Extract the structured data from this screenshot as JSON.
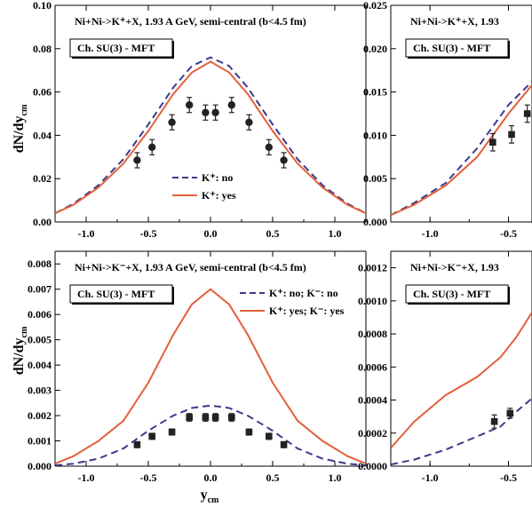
{
  "colors": {
    "no_line": "#3a3a8c",
    "yes_line": "#e2603a",
    "axis": "#000000",
    "marker": "#222222"
  },
  "x_axis_label": "y",
  "x_axis_label_sub": "cm",
  "y_axis_label": "dN/dy",
  "y_axis_label_sub": "cm",
  "chart_data": [
    {
      "type": "line",
      "panel": "top-left",
      "title": "Ni+Ni->K⁺+X, 1.93 A GeV,  semi-central (b<4.5 fm)",
      "box_label": "Ch. SU(3) - MFT",
      "xlim": [
        -1.25,
        1.25
      ],
      "ylim": [
        0,
        0.1
      ],
      "xticks": [
        -1.0,
        -0.5,
        0.0,
        0.5,
        1.0
      ],
      "xtick_labels": [
        "-1.0",
        "-0.5",
        "0.0",
        "0.5",
        "1.0"
      ],
      "yticks": [
        0,
        0.02,
        0.04,
        0.06,
        0.08,
        0.1
      ],
      "ytick_labels": [
        "0.00",
        "0.02",
        "0.04",
        "0.06",
        "0.08",
        "0.10"
      ],
      "legend_position": "lower-center",
      "series": [
        {
          "name": "K⁺: no",
          "style": "dashed",
          "x": [
            -1.25,
            -1.1,
            -0.9,
            -0.7,
            -0.5,
            -0.3,
            -0.15,
            0,
            0.15,
            0.3,
            0.5,
            0.7,
            0.9,
            1.1,
            1.25
          ],
          "y": [
            0.004,
            0.0085,
            0.017,
            0.029,
            0.045,
            0.062,
            0.072,
            0.076,
            0.072,
            0.062,
            0.045,
            0.029,
            0.017,
            0.0085,
            0.004
          ]
        },
        {
          "name": "K⁺: yes",
          "style": "solid",
          "x": [
            -1.25,
            -1.1,
            -0.9,
            -0.7,
            -0.5,
            -0.3,
            -0.15,
            0,
            0.15,
            0.3,
            0.5,
            0.7,
            0.9,
            1.1,
            1.25
          ],
          "y": [
            0.004,
            0.008,
            0.016,
            0.027,
            0.042,
            0.059,
            0.069,
            0.074,
            0.069,
            0.059,
            0.042,
            0.027,
            0.016,
            0.008,
            0.004
          ]
        }
      ],
      "points": {
        "marker": "circle",
        "x": [
          -0.59,
          -0.47,
          -0.31,
          -0.17,
          -0.04,
          0.04,
          0.17,
          0.31,
          0.47,
          0.59
        ],
        "y": [
          0.0285,
          0.0345,
          0.046,
          0.054,
          0.0505,
          0.0505,
          0.054,
          0.046,
          0.0345,
          0.0285
        ],
        "err": [
          0.0035,
          0.0035,
          0.0035,
          0.0035,
          0.0035,
          0.0035,
          0.0035,
          0.0035,
          0.0035,
          0.0035
        ]
      }
    },
    {
      "type": "line",
      "panel": "top-right",
      "title": "Ni+Ni->K⁺+X, 1.93",
      "box_label": "Ch. SU(3) - MFT",
      "xlim": [
        -1.25,
        -0.35
      ],
      "ylim": [
        0,
        0.025
      ],
      "xticks": [
        -1.0,
        -0.5
      ],
      "xtick_labels": [
        "-1.0",
        "-0.5"
      ],
      "yticks": [
        0,
        0.005,
        0.01,
        0.015,
        0.02,
        0.025
      ],
      "ytick_labels": [
        "0.000",
        "0.005",
        "0.010",
        "0.015",
        "0.020",
        "0.025"
      ],
      "series": [
        {
          "name": "K⁺: no",
          "style": "dashed",
          "x": [
            -1.25,
            -1.1,
            -0.9,
            -0.7,
            -0.5,
            -0.35
          ],
          "y": [
            0.0008,
            0.0022,
            0.0045,
            0.0085,
            0.0135,
            0.0162
          ]
        },
        {
          "name": "K⁺: yes",
          "style": "solid",
          "x": [
            -1.25,
            -1.1,
            -0.9,
            -0.7,
            -0.5,
            -0.35
          ],
          "y": [
            0.0008,
            0.002,
            0.0042,
            0.0075,
            0.0125,
            0.0158
          ]
        }
      ],
      "points": {
        "marker": "square",
        "x": [
          -0.6,
          -0.48,
          -0.38
        ],
        "y": [
          0.0092,
          0.0101,
          0.0125
        ],
        "err": [
          0.001,
          0.001,
          0.001
        ]
      }
    },
    {
      "type": "line",
      "panel": "bottom-left",
      "title": "Ni+Ni->K⁻+X, 1.93 A GeV,  semi-central (b<4.5 fm)",
      "box_label": "Ch. SU(3) - MFT",
      "xlim": [
        -1.25,
        1.25
      ],
      "ylim": [
        0,
        0.0085
      ],
      "xticks": [
        -1.0,
        -0.5,
        0.0,
        0.5,
        1.0
      ],
      "xtick_labels": [
        "-1.0",
        "-0.5",
        "0.0",
        "0.5",
        "1.0"
      ],
      "yticks": [
        0,
        0.001,
        0.002,
        0.003,
        0.004,
        0.005,
        0.006,
        0.007,
        0.008
      ],
      "ytick_labels": [
        "0.000",
        "0.001",
        "0.002",
        "0.003",
        "0.004",
        "0.005",
        "0.006",
        "0.007",
        "0.008"
      ],
      "legend_position": "top-right",
      "series": [
        {
          "name": "K⁺: no;  K⁻: no",
          "style": "dashed",
          "x": [
            -1.25,
            -1.1,
            -0.9,
            -0.7,
            -0.5,
            -0.3,
            -0.15,
            0,
            0.15,
            0.3,
            0.5,
            0.7,
            0.9,
            1.1,
            1.25
          ],
          "y": [
            3e-05,
            0.0001,
            0.0003,
            0.0007,
            0.0014,
            0.002,
            0.0023,
            0.0024,
            0.0023,
            0.002,
            0.0014,
            0.0007,
            0.0003,
            0.0001,
            3e-05
          ]
        },
        {
          "name": "K⁺: yes; K⁻: yes",
          "style": "solid",
          "x": [
            -1.25,
            -1.1,
            -0.9,
            -0.7,
            -0.5,
            -0.3,
            -0.15,
            0,
            0.15,
            0.3,
            0.5,
            0.7,
            0.9,
            1.1,
            1.25
          ],
          "y": [
            0.0001,
            0.0004,
            0.001,
            0.0018,
            0.0033,
            0.0052,
            0.0064,
            0.007,
            0.0064,
            0.0052,
            0.0033,
            0.0018,
            0.001,
            0.0004,
            0.0001
          ]
        }
      ],
      "points": {
        "marker": "square",
        "x": [
          -0.59,
          -0.47,
          -0.31,
          -0.17,
          -0.04,
          0.04,
          0.17,
          0.31,
          0.47,
          0.59
        ],
        "y": [
          0.00085,
          0.00118,
          0.00135,
          0.00193,
          0.00193,
          0.00193,
          0.00193,
          0.00135,
          0.00118,
          0.00085
        ],
        "err": [
          0.00012,
          0.00012,
          0.00012,
          0.00015,
          0.00015,
          0.00015,
          0.00015,
          0.00012,
          0.00012,
          0.00012
        ]
      }
    },
    {
      "type": "line",
      "panel": "bottom-right",
      "title": "Ni+Ni->K⁻+X, 1.93",
      "box_label": "Ch. SU(3) - MFT",
      "xlim": [
        -1.25,
        -0.35
      ],
      "ylim": [
        0,
        0.0013
      ],
      "xticks": [
        -1.0,
        -0.5
      ],
      "xtick_labels": [
        "-1.0",
        "-0.5"
      ],
      "yticks": [
        0,
        0.0002,
        0.0004,
        0.0006,
        0.0008,
        0.001,
        0.0012
      ],
      "ytick_labels": [
        "0.0000",
        "0.0002",
        "0.0004",
        "0.0006",
        "0.0008",
        "0.0010",
        "0.0012"
      ],
      "series": [
        {
          "name": "K⁺: no;  K⁻: no",
          "style": "dashed",
          "x": [
            -1.25,
            -1.1,
            -0.9,
            -0.7,
            -0.55,
            -0.45,
            -0.35
          ],
          "y": [
            1e-05,
            4e-05,
            0.0001,
            0.00018,
            0.00024,
            0.00033,
            0.00041
          ]
        },
        {
          "name": "K⁺: yes; K⁻: yes",
          "style": "solid",
          "x": [
            -1.25,
            -1.1,
            -0.9,
            -0.7,
            -0.55,
            -0.45,
            -0.35
          ],
          "y": [
            0.00011,
            0.00027,
            0.00043,
            0.00054,
            0.00066,
            0.00078,
            0.00093
          ]
        }
      ],
      "points": {
        "marker": "square",
        "x": [
          -0.59,
          -0.49
        ],
        "y": [
          0.00027,
          0.00032
        ],
        "err": [
          4e-05,
          3e-05
        ]
      }
    }
  ]
}
